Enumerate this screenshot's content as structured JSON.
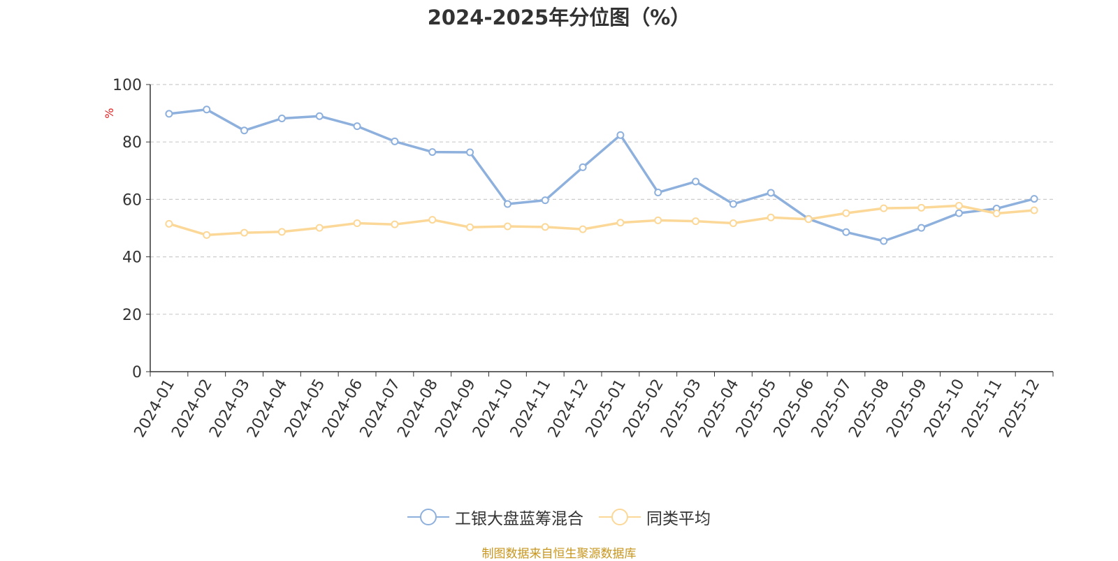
{
  "title": "2024-2025年分位图（%）",
  "source": "制图数据来自恒生聚源数据库",
  "chart_data": {
    "type": "line",
    "title": "2024-2025年分位图（%）",
    "ylabel": "%",
    "ylim": [
      0,
      100
    ],
    "yticks": [
      0,
      20,
      40,
      60,
      80,
      100
    ],
    "grid": "horizontal dashed",
    "legend_position": "bottom-center",
    "categories": [
      "2024-01",
      "2024-02",
      "2024-03",
      "2024-04",
      "2024-05",
      "2024-06",
      "2024-07",
      "2024-08",
      "2024-09",
      "2024-10",
      "2024-11",
      "2024-12",
      "2025-01",
      "2025-02",
      "2025-03",
      "2025-04",
      "2025-05",
      "2025-06",
      "2025-07",
      "2025-08",
      "2025-09",
      "2025-10",
      "2025-11",
      "2025-12"
    ],
    "series": [
      {
        "name": "工银大盘蓝筹混合",
        "color": "#8eb0dd",
        "values": [
          89.8,
          91.3,
          84.0,
          88.2,
          89.0,
          85.5,
          80.2,
          76.5,
          76.4,
          58.4,
          59.7,
          71.2,
          82.4,
          62.4,
          66.2,
          58.4,
          62.3,
          53.2,
          48.6,
          45.5,
          50.1,
          55.2,
          56.8,
          60.2
        ]
      },
      {
        "name": "同类平均",
        "color": "#fcd898",
        "values": [
          51.5,
          47.6,
          48.4,
          48.7,
          50.1,
          51.7,
          51.3,
          52.9,
          50.3,
          50.6,
          50.4,
          49.6,
          51.9,
          52.7,
          52.4,
          51.7,
          53.7,
          53.1,
          55.2,
          56.9,
          57.1,
          57.8,
          55.1,
          56.2
        ]
      }
    ]
  }
}
